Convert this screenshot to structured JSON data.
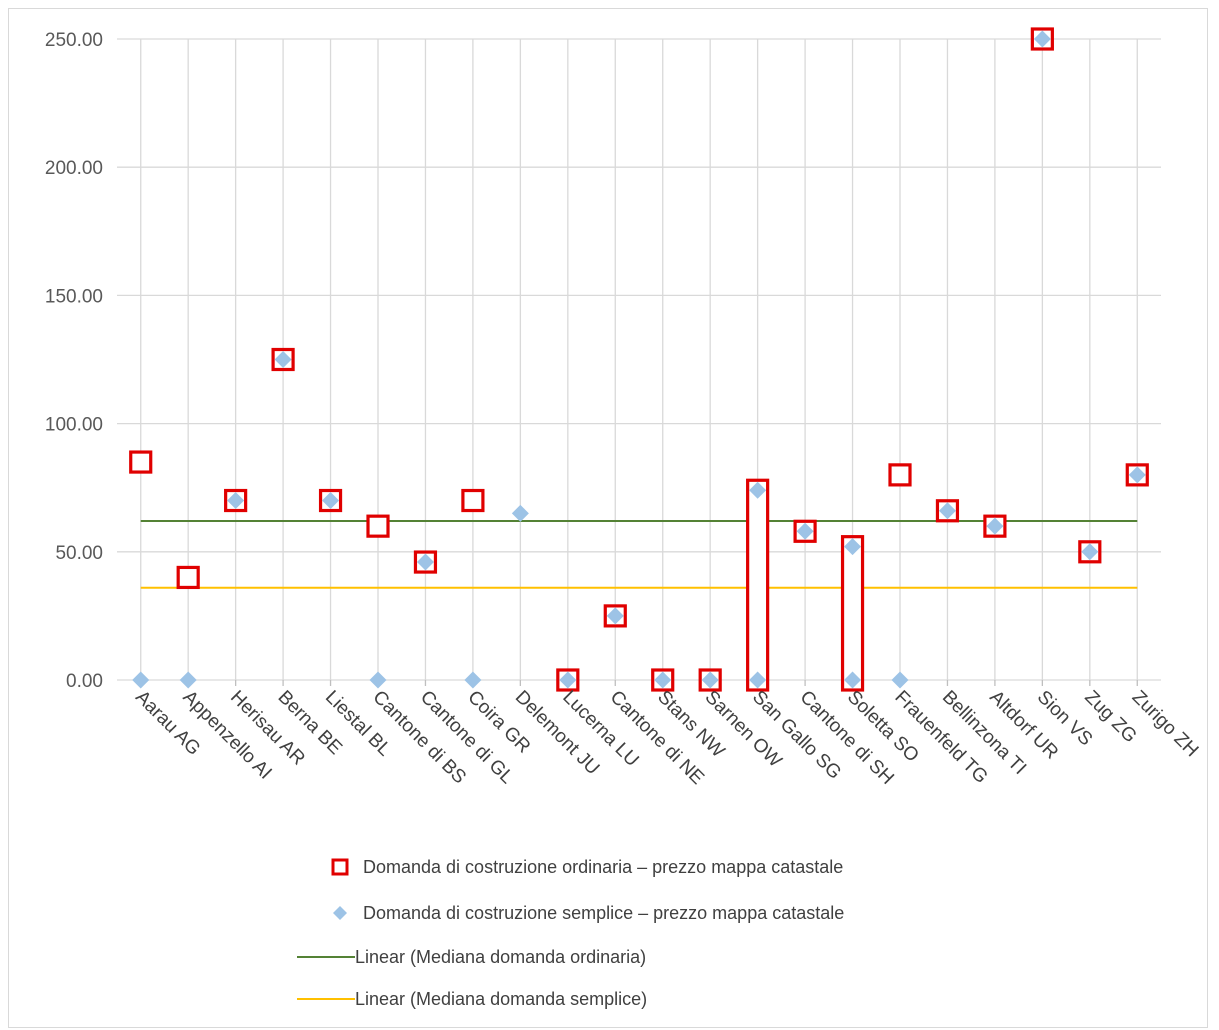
{
  "chart_data": {
    "type": "scatter",
    "title": "",
    "xlabel": "",
    "ylabel": "",
    "ylim": [
      0,
      250
    ],
    "yticks": [
      "0.00",
      "50.00",
      "100.00",
      "150.00",
      "200.00",
      "250.00"
    ],
    "ytick_values": [
      0,
      50,
      100,
      150,
      200,
      250
    ],
    "grid": true,
    "categories": [
      "Aarau AG",
      "Appenzello AI",
      "Herisau AR",
      "Berna BE",
      "Liestal BL",
      "Cantone di BS",
      "Cantone di GL",
      "Coira GR",
      "Delemont JU",
      "Lucerna LU",
      "Cantone di NE",
      "Stans NW",
      "Sarnen OW",
      "San Gallo SG",
      "Cantone di SH",
      "Soletta SO",
      "Frauenfeld TG",
      "Bellinzona TI",
      "Altdorf UR",
      "Sion VS",
      "Zug ZG",
      "Zurigo ZH"
    ],
    "series": [
      {
        "name": "Domanda di costruzione ordinaria – prezzo mappa catastale",
        "marker": "square",
        "color": "#e00000",
        "values": [
          85,
          40,
          70,
          125,
          70,
          60,
          46,
          70,
          null,
          0,
          25,
          0,
          0,
          [
            0,
            74
          ],
          58,
          [
            0,
            52
          ],
          80,
          66,
          60,
          250,
          50,
          80
        ]
      },
      {
        "name": "Domanda di costruzione semplice – prezzo mappa catastale",
        "marker": "diamond",
        "color": "#9dc3e6",
        "values": [
          0,
          0,
          70,
          125,
          70,
          0,
          46,
          0,
          65,
          0,
          25,
          0,
          0,
          [
            0,
            74
          ],
          58,
          [
            0,
            52
          ],
          0,
          66,
          60,
          250,
          50,
          80
        ]
      },
      {
        "name": "Linear (Mediana domanda ordinaria)",
        "marker": "line",
        "color": "#548235",
        "value": 62
      },
      {
        "name": "Linear (Mediana domanda semplice)",
        "marker": "line",
        "color": "#ffc000",
        "value": 36
      }
    ],
    "legend_position": "bottom"
  }
}
